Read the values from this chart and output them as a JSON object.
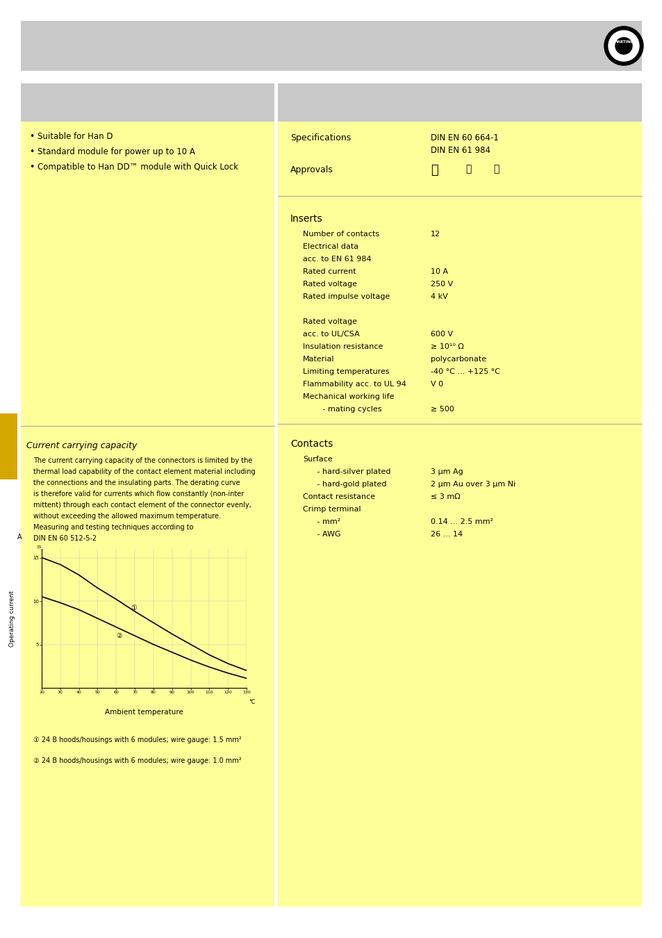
{
  "bg_color": "#ffffff",
  "yellow_bg": "#ffff99",
  "gray_header_bg": "#c8c8c8",
  "yellow_tab": "#d4a800",
  "bullet_points": [
    "Suitable for Han D",
    "Standard module for power up to 10 A",
    "Compatible to Han DD™ module with Quick Lock"
  ],
  "current_carrying_title": "Current carrying capacity",
  "current_carrying_text_lines": [
    "The current carrying capacity of the connectors is limited by the",
    "thermal load capability of the contact element material including",
    "the connections and the insulating parts. The derating curve",
    "is therefore valid for currents which flow constantly (non-inter",
    "mittent) through each contact element of the connector evenly,",
    "without exceeding the allowed maximum temperature.",
    "Measuring and testing techniques according to",
    "DIN EN 60 512-5-2"
  ],
  "footnote1": "① 24 B hoods/housings with 6 modules; wire gauge: 1.5 mm²",
  "footnote2": "② 24 B hoods/housings with 6 modules; wire gauge: 1.0 mm²",
  "spec_label": "Specifications",
  "spec_value1": "DIN EN 60 664-1",
  "spec_value2": "DIN EN 61 984",
  "approvals_label": "Approvals",
  "inserts_title": "Inserts",
  "contacts_title": "Contacts",
  "graph_x1": [
    20,
    30,
    40,
    50,
    60,
    70,
    80,
    90,
    100,
    110,
    120,
    130
  ],
  "graph_y1": [
    15.0,
    14.2,
    13.0,
    11.5,
    10.2,
    8.8,
    7.5,
    6.2,
    5.0,
    3.8,
    2.8,
    2.0
  ],
  "graph_x2": [
    20,
    30,
    40,
    50,
    60,
    70,
    80,
    90,
    100,
    110,
    120,
    130
  ],
  "graph_y2": [
    10.5,
    9.8,
    9.0,
    8.0,
    7.0,
    6.0,
    5.0,
    4.1,
    3.2,
    2.4,
    1.7,
    1.1
  ],
  "rows_inserts": [
    [
      "Number of contacts",
      "12"
    ],
    [
      "Electrical data",
      ""
    ],
    [
      "acc. to EN 61 984",
      ""
    ],
    [
      "Rated current",
      "10 A"
    ],
    [
      "Rated voltage",
      "250 V"
    ],
    [
      "Rated impulse voltage",
      "4 kV"
    ],
    [
      "",
      ""
    ],
    [
      "Rated voltage",
      ""
    ],
    [
      "acc. to UL/CSA",
      "600 V"
    ],
    [
      "Insulation resistance",
      "≥ 10¹⁰ Ω"
    ],
    [
      "Material",
      "polycarbonate"
    ],
    [
      "Limiting temperatures",
      "-40 °C ... +125 °C"
    ],
    [
      "Flammability acc. to UL 94",
      "V 0"
    ],
    [
      "Mechanical working life",
      ""
    ],
    [
      "   - mating cycles",
      "≥ 500"
    ]
  ],
  "rows_contacts": [
    [
      "Surface",
      ""
    ],
    [
      "   - hard-silver plated",
      "3 μm Ag"
    ],
    [
      "   - hard-gold plated",
      "2 μm Au over 3 μm Ni"
    ],
    [
      "Contact resistance",
      "≤ 3 mΩ"
    ],
    [
      "Crimp terminal",
      ""
    ],
    [
      "   - mm²",
      "0.14 ... 2.5 mm²"
    ],
    [
      "   - AWG",
      "26 ... 14"
    ]
  ]
}
